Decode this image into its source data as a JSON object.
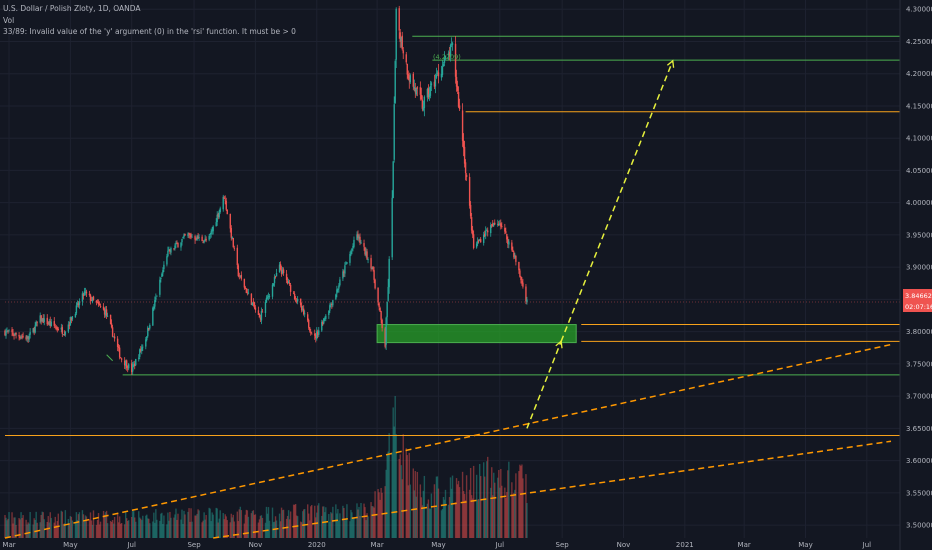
{
  "header": {
    "symbol": "U.S. Dollar / Polish Zloty, 1D, OANDA",
    "indicator": "Vol",
    "error": "33/89: Invalid value of the 'y' argument (0) in the 'rsi' function. It must be > 0"
  },
  "colors": {
    "background": "#131722",
    "grid": "#1e2230",
    "up": "#26a69a",
    "down": "#ef5350",
    "green_line": "#4caf50",
    "orange_line": "#f7a21b",
    "yellow_dash": "#e6f03c",
    "orange_dash": "#ff9800",
    "zone_fill": "#1a8a1a",
    "price_badge": "#ef5350"
  },
  "chart_data": {
    "type": "candlestick",
    "x_axis_labels": [
      "Mar",
      "May",
      "Jul",
      "Sep",
      "Nov",
      "2020",
      "Mar",
      "May",
      "Jul",
      "Sep",
      "Nov",
      "2021",
      "Mar",
      "May",
      "Jul"
    ],
    "y_axis_labels": [
      "4.30000",
      "4.25000",
      "4.20000",
      "4.15000",
      "4.10000",
      "4.05000",
      "4.00000",
      "3.95000",
      "3.90000",
      "3.85000",
      "3.80000",
      "3.75000",
      "3.70000",
      "3.65000",
      "3.60000",
      "3.55000",
      "3.50000"
    ],
    "ylim": [
      3.48,
      4.305
    ],
    "current_price": "3.84662",
    "countdown": "02:07:16",
    "annotation": "(4.2209)",
    "price_path": [
      {
        "date": "2019-02-25",
        "p": 3.8
      },
      {
        "date": "2019-03-20",
        "p": 3.79
      },
      {
        "date": "2019-04-01",
        "p": 3.82
      },
      {
        "date": "2019-04-25",
        "p": 3.8
      },
      {
        "date": "2019-05-15",
        "p": 3.86
      },
      {
        "date": "2019-06-05",
        "p": 3.83
      },
      {
        "date": "2019-06-20",
        "p": 3.76
      },
      {
        "date": "2019-07-01",
        "p": 3.74
      },
      {
        "date": "2019-07-15",
        "p": 3.79
      },
      {
        "date": "2019-08-05",
        "p": 3.92
      },
      {
        "date": "2019-08-25",
        "p": 3.95
      },
      {
        "date": "2019-09-15",
        "p": 3.94
      },
      {
        "date": "2019-10-01",
        "p": 4.01
      },
      {
        "date": "2019-10-15",
        "p": 3.89
      },
      {
        "date": "2019-11-05",
        "p": 3.82
      },
      {
        "date": "2019-11-25",
        "p": 3.9
      },
      {
        "date": "2019-12-15",
        "p": 3.84
      },
      {
        "date": "2019-12-30",
        "p": 3.79
      },
      {
        "date": "2020-01-20",
        "p": 3.86
      },
      {
        "date": "2020-02-10",
        "p": 3.95
      },
      {
        "date": "2020-02-25",
        "p": 3.9
      },
      {
        "date": "2020-03-09",
        "p": 3.78
      },
      {
        "date": "2020-03-16",
        "p": 4.0
      },
      {
        "date": "2020-03-20",
        "p": 4.29
      },
      {
        "date": "2020-04-01",
        "p": 4.2
      },
      {
        "date": "2020-04-15",
        "p": 4.15
      },
      {
        "date": "2020-05-01",
        "p": 4.2
      },
      {
        "date": "2020-05-15",
        "p": 4.24
      },
      {
        "date": "2020-05-25",
        "p": 4.1
      },
      {
        "date": "2020-06-05",
        "p": 3.93
      },
      {
        "date": "2020-06-20",
        "p": 3.96
      },
      {
        "date": "2020-07-01",
        "p": 3.97
      },
      {
        "date": "2020-07-15",
        "p": 3.92
      },
      {
        "date": "2020-07-28",
        "p": 3.8466
      }
    ],
    "volume_profile": [
      {
        "date": "2019-02-25",
        "v": 0.18
      },
      {
        "date": "2019-09-01",
        "v": 0.2
      },
      {
        "date": "2020-02-25",
        "v": 0.25
      },
      {
        "date": "2020-03-10",
        "v": 0.6
      },
      {
        "date": "2020-03-20",
        "v": 1.0
      },
      {
        "date": "2020-04-10",
        "v": 0.45
      },
      {
        "date": "2020-05-10",
        "v": 0.4
      },
      {
        "date": "2020-06-15",
        "v": 0.55
      },
      {
        "date": "2020-07-28",
        "v": 0.5
      }
    ],
    "horizontal_levels": [
      {
        "price": 4.258,
        "color": "green",
        "from": "2020-04-05"
      },
      {
        "price": 4.221,
        "color": "green",
        "from": "2020-04-25"
      },
      {
        "price": 4.141,
        "color": "orange",
        "from": "2020-05-28"
      },
      {
        "price": 3.811,
        "color": "orange",
        "from": "2020-09-20"
      },
      {
        "price": 3.785,
        "color": "orange",
        "from": "2020-09-20"
      },
      {
        "price": 3.733,
        "color": "green",
        "from": "2019-06-22"
      },
      {
        "price": 3.639,
        "color": "orange",
        "from": "2019-02-25"
      },
      {
        "price": 3.846,
        "color": "red_thin",
        "from": "2019-02-25"
      }
    ],
    "zone": {
      "from": "2020-03-01",
      "to": "2020-09-15",
      "top": 3.811,
      "bottom": 3.783
    },
    "trendlines": [
      {
        "from": {
          "date": "2019-02-25",
          "price": 3.48
        },
        "to": {
          "date": "2021-07-25",
          "price": 3.78
        },
        "style": "orange-dash"
      },
      {
        "from": {
          "date": "2019-09-20",
          "price": 3.48
        },
        "to": {
          "date": "2021-07-25",
          "price": 3.63
        },
        "style": "orange-dash"
      }
    ],
    "projection": [
      {
        "from": {
          "date": "2020-07-28",
          "price": 3.65
        },
        "to": {
          "date": "2020-08-31",
          "price": 3.785
        },
        "style": "yellow-dash-arrow"
      },
      {
        "from": {
          "date": "2020-08-31",
          "price": 3.785
        },
        "to": {
          "date": "2020-12-20",
          "price": 4.22
        },
        "style": "yellow-dash-arrow"
      }
    ],
    "small_marker": {
      "date": "2019-06-18",
      "price": 3.758
    }
  }
}
